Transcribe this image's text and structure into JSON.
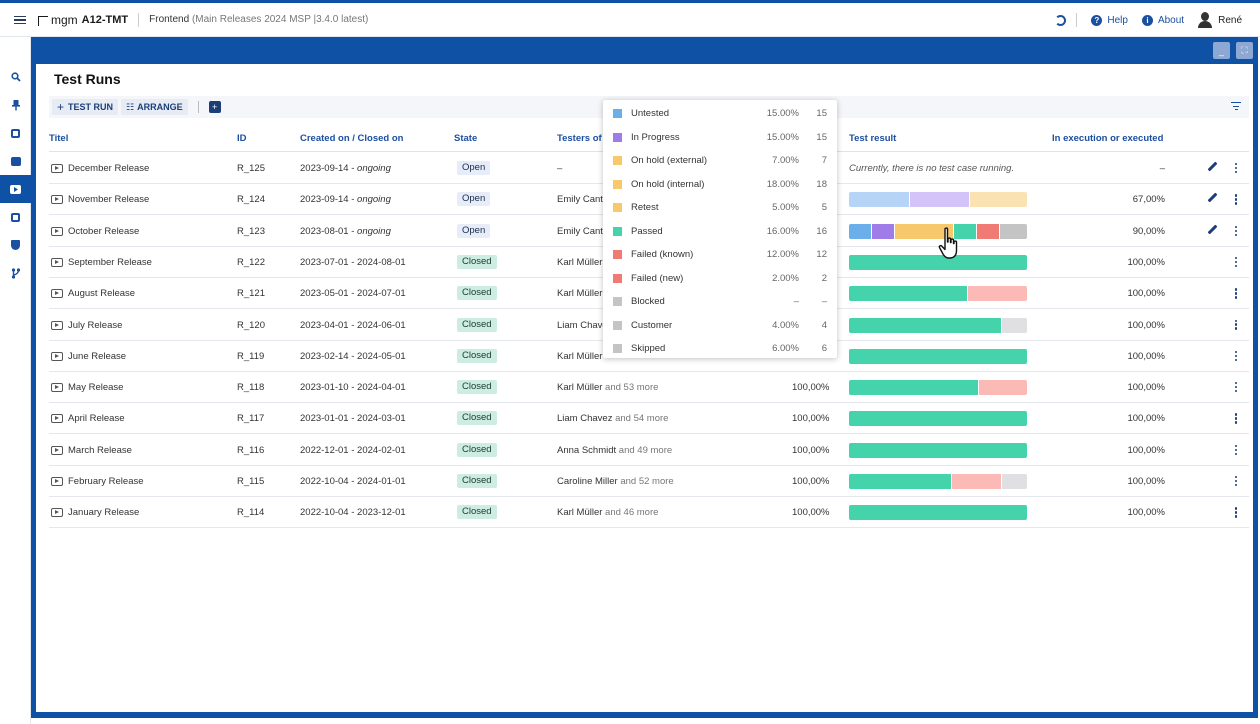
{
  "topbar": {
    "brand": "mgm",
    "app": "A12-TMT",
    "project": "Frontend",
    "project_sub": "(Main Releases 2024  MSP  |3.4.0 latest)",
    "help": "Help",
    "about": "About",
    "user": "René"
  },
  "rail": [
    "search-icon",
    "pin-icon",
    "dashboard-icon",
    "checklist-icon",
    "test-run-icon",
    "calendar-icon",
    "shield-icon",
    "branch-icon"
  ],
  "page": {
    "title": "Test Runs",
    "toolbar": {
      "test_run": "TEST RUN",
      "arrange": "ARRANGE"
    }
  },
  "columns": {
    "title": "Titel",
    "id": "ID",
    "created": "Created on / Closed on",
    "state": "State",
    "testers": "Testers of",
    "result": "Test result",
    "execution": "In execution or executed"
  },
  "colors": {
    "untested": "#6aaeea",
    "in_progress": "#a07ce8",
    "on_hold_external": "#f7c86c",
    "on_hold_internal": "#f7c86c",
    "retest": "#f7c86c",
    "passed": "#45d3ac",
    "failed_known": "#f07a74",
    "failed_new": "#f07a74",
    "blocked": "#c4c4c4",
    "customer": "#c4c4c4",
    "skipped": "#c4c4c4",
    "untested_light": "#b6d5f6",
    "in_progress_light": "#d3c3f8",
    "hold_light": "#fbe2b3",
    "failed_light": "#fbbab6",
    "other_light": "#e0dfe2"
  },
  "legend": [
    {
      "name": "Untested",
      "pct": "15.00%",
      "count": "15",
      "color": "#6aaeea"
    },
    {
      "name": "In Progress",
      "pct": "15.00%",
      "count": "15",
      "color": "#a07ce8"
    },
    {
      "name": "On hold (external)",
      "pct": "7.00%",
      "count": "7",
      "color": "#f7c86c"
    },
    {
      "name": "On hold (internal)",
      "pct": "18.00%",
      "count": "18",
      "color": "#f7c86c"
    },
    {
      "name": "Retest",
      "pct": "5.00%",
      "count": "5",
      "color": "#f7c86c"
    },
    {
      "name": "Passed",
      "pct": "16.00%",
      "count": "16",
      "color": "#45d3ac"
    },
    {
      "name": "Failed (known)",
      "pct": "12.00%",
      "count": "12",
      "color": "#f07a74"
    },
    {
      "name": "Failed (new)",
      "pct": "2.00%",
      "count": "2",
      "color": "#f07a74"
    },
    {
      "name": "Blocked",
      "pct": "–",
      "count": "–",
      "color": "#c4c4c4"
    },
    {
      "name": "Customer",
      "pct": "4.00%",
      "count": "4",
      "color": "#c4c4c4"
    },
    {
      "name": "Skipped",
      "pct": "6.00%",
      "count": "6",
      "color": "#c4c4c4"
    }
  ],
  "rows": [
    {
      "title": "December Release",
      "id": "R_125",
      "created": "2023-09-14 - ",
      "closed": "ongoing",
      "closed_italic": true,
      "state": "Open",
      "tester": "–",
      "more": "",
      "exec_pct": "",
      "result_text": "Currently, there is no test case running.",
      "segments": [],
      "execution": "–",
      "editable": true
    },
    {
      "title": "November Release",
      "id": "R_124",
      "created": "2023-09-14 - ",
      "closed": "ongoing",
      "closed_italic": true,
      "state": "Open",
      "tester": "Emily Cant",
      "more": "",
      "exec_pct": "",
      "result_text": "",
      "segments": [
        {
          "w": 0.34,
          "c": "#b6d5f6"
        },
        {
          "w": 0.34,
          "c": "#d3c3f8"
        },
        {
          "w": 0.32,
          "c": "#fbe2b3"
        }
      ],
      "execution": "67,00%",
      "editable": true
    },
    {
      "title": "October Release",
      "id": "R_123",
      "created": "2023-08-01 - ",
      "closed": "ongoing",
      "closed_italic": true,
      "state": "Open",
      "tester": "Emily Cant",
      "more": "",
      "exec_pct": "",
      "result_text": "",
      "segments": [
        {
          "w": 0.13,
          "c": "#6aaeea"
        },
        {
          "w": 0.13,
          "c": "#a07ce8"
        },
        {
          "w": 0.33,
          "c": "#f7c86c"
        },
        {
          "w": 0.13,
          "c": "#45d3ac"
        },
        {
          "w": 0.13,
          "c": "#f07a74"
        },
        {
          "w": 0.15,
          "c": "#c4c4c4"
        }
      ],
      "execution": "90,00%",
      "editable": true
    },
    {
      "title": "September Release",
      "id": "R_122",
      "created": "2023-07-01 - 2024-08-01",
      "closed": "",
      "closed_italic": false,
      "state": "Closed",
      "tester": "Karl Müller",
      "more": "",
      "exec_pct": "",
      "result_text": "",
      "segments": [
        {
          "w": 1.0,
          "c": "#45d3ac"
        }
      ],
      "execution": "100,00%",
      "editable": false
    },
    {
      "title": "August Release",
      "id": "R_121",
      "created": "2023-05-01 - 2024-07-01",
      "closed": "",
      "closed_italic": false,
      "state": "Closed",
      "tester": "Karl Müller",
      "more": "",
      "exec_pct": "",
      "result_text": "",
      "segments": [
        {
          "w": 0.67,
          "c": "#45d3ac"
        },
        {
          "w": 0.33,
          "c": "#fbbab6"
        }
      ],
      "execution": "100,00%",
      "editable": false
    },
    {
      "title": "July Release",
      "id": "R_120",
      "created": "2023-04-01 - 2024-06-01",
      "closed": "",
      "closed_italic": false,
      "state": "Closed",
      "tester": "Liam Chave",
      "more": "",
      "exec_pct": "",
      "result_text": "",
      "segments": [
        {
          "w": 0.86,
          "c": "#45d3ac"
        },
        {
          "w": 0.14,
          "c": "#e0dfe2"
        }
      ],
      "execution": "100,00%",
      "editable": false
    },
    {
      "title": "June Release",
      "id": "R_119",
      "created": "2023-02-14 - 2024-05-01",
      "closed": "",
      "closed_italic": false,
      "state": "Closed",
      "tester": "Karl Müller",
      "more": "",
      "exec_pct": "",
      "result_text": "",
      "segments": [
        {
          "w": 1.0,
          "c": "#45d3ac"
        }
      ],
      "execution": "100,00%",
      "editable": false
    },
    {
      "title": "May Release",
      "id": "R_118",
      "created": "2023-01-10 - 2024-04-01",
      "closed": "",
      "closed_italic": false,
      "state": "Closed",
      "tester": "Karl Müller",
      "more": "and 53 more",
      "exec_pct": "100,00%",
      "result_text": "",
      "segments": [
        {
          "w": 0.73,
          "c": "#45d3ac"
        },
        {
          "w": 0.27,
          "c": "#fbbab6"
        }
      ],
      "execution": "100,00%",
      "editable": false
    },
    {
      "title": "April Release",
      "id": "R_117",
      "created": "2023-01-01 - 2024-03-01",
      "closed": "",
      "closed_italic": false,
      "state": "Closed",
      "tester": "Liam Chavez",
      "more": "and 54 more",
      "exec_pct": "100,00%",
      "result_text": "",
      "segments": [
        {
          "w": 1.0,
          "c": "#45d3ac"
        }
      ],
      "execution": "100,00%",
      "editable": false
    },
    {
      "title": "March Release",
      "id": "R_116",
      "created": "2022-12-01 - 2024-02-01",
      "closed": "",
      "closed_italic": false,
      "state": "Closed",
      "tester": "Anna Schmidt",
      "more": "and 49 more",
      "exec_pct": "100,00%",
      "result_text": "",
      "segments": [
        {
          "w": 1.0,
          "c": "#45d3ac"
        }
      ],
      "execution": "100,00%",
      "editable": false
    },
    {
      "title": "February Release",
      "id": "R_115",
      "created": "2022-10-04 - 2024-01-01",
      "closed": "",
      "closed_italic": false,
      "state": "Closed",
      "tester": "Caroline Miller",
      "more": "and 52 more",
      "exec_pct": "100,00%",
      "result_text": "",
      "segments": [
        {
          "w": 0.58,
          "c": "#45d3ac"
        },
        {
          "w": 0.28,
          "c": "#fbbab6"
        },
        {
          "w": 0.14,
          "c": "#e0dfe2"
        }
      ],
      "execution": "100,00%",
      "editable": false
    },
    {
      "title": "January Release",
      "id": "R_114",
      "created": "2022-10-04 - 2023-12-01",
      "closed": "",
      "closed_italic": false,
      "state": "Closed",
      "tester": "Karl Müller",
      "more": "and 46 more",
      "exec_pct": "100,00%",
      "result_text": "",
      "segments": [
        {
          "w": 1.0,
          "c": "#45d3ac"
        }
      ],
      "execution": "100,00%",
      "editable": false
    }
  ]
}
